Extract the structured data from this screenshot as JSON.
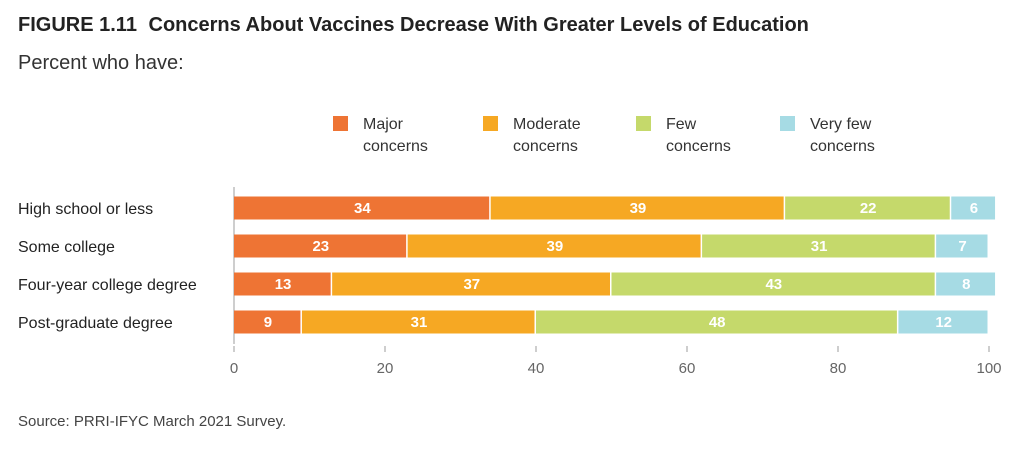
{
  "figure": {
    "number": "FIGURE 1.11",
    "title": "Concerns About Vaccines Decrease With Greater Levels of Education",
    "subtitle": "Percent who have:",
    "source": "Source: PRRI-IFYC March 2021 Survey."
  },
  "chart_data": {
    "type": "bar",
    "orientation": "horizontal",
    "stacked": true,
    "categories": [
      "High school or less",
      "Some college",
      "Four-year college degree",
      "Post-graduate degree"
    ],
    "series": [
      {
        "name": "Major concerns",
        "legend_lines": [
          "Major",
          "concerns"
        ],
        "color": "#ee7434",
        "values": [
          34,
          23,
          13,
          9
        ]
      },
      {
        "name": "Moderate concerns",
        "legend_lines": [
          "Moderate",
          "concerns"
        ],
        "color": "#f6a823",
        "values": [
          39,
          39,
          37,
          31
        ]
      },
      {
        "name": "Few concerns",
        "legend_lines": [
          "Few",
          "concerns"
        ],
        "color": "#c5d96b",
        "values": [
          22,
          31,
          43,
          48
        ]
      },
      {
        "name": "Very few concerns",
        "legend_lines": [
          "Very few",
          "concerns"
        ],
        "color": "#a6dbe4",
        "values": [
          6,
          7,
          8,
          12
        ]
      }
    ],
    "xlim": [
      0,
      100
    ],
    "xticks": [
      0,
      20,
      40,
      60,
      80,
      100
    ],
    "grid": false,
    "legend": "top"
  }
}
